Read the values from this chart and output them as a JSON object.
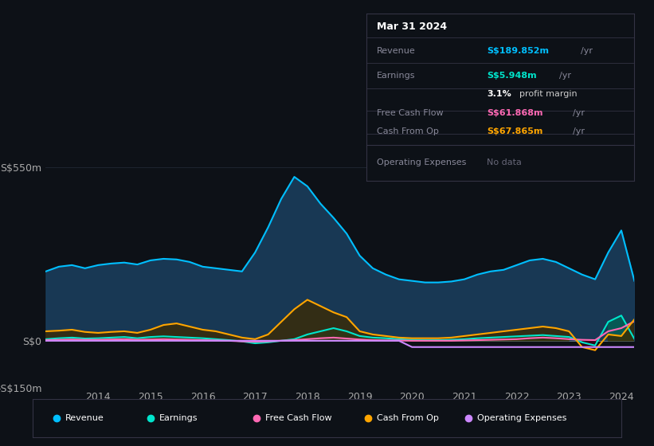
{
  "bg_color": "#0d1117",
  "plot_bg_color": "#0d1117",
  "grid_color": "#2a3040",
  "ylim": [
    -150,
    600
  ],
  "yticks": [
    -150,
    0,
    550
  ],
  "ytick_labels": [
    "-S$150m",
    "S$0",
    "S$550m"
  ],
  "years": [
    2013.0,
    2013.25,
    2013.5,
    2013.75,
    2014.0,
    2014.25,
    2014.5,
    2014.75,
    2015.0,
    2015.25,
    2015.5,
    2015.75,
    2016.0,
    2016.25,
    2016.5,
    2016.75,
    2017.0,
    2017.25,
    2017.5,
    2017.75,
    2018.0,
    2018.25,
    2018.5,
    2018.75,
    2019.0,
    2019.25,
    2019.5,
    2019.75,
    2020.0,
    2020.25,
    2020.5,
    2020.75,
    2021.0,
    2021.25,
    2021.5,
    2021.75,
    2022.0,
    2022.25,
    2022.5,
    2022.75,
    2023.0,
    2023.25,
    2023.5,
    2023.75,
    2024.0,
    2024.25
  ],
  "revenue": [
    220,
    235,
    240,
    230,
    240,
    245,
    248,
    242,
    255,
    260,
    258,
    250,
    235,
    230,
    225,
    220,
    280,
    360,
    450,
    520,
    490,
    435,
    390,
    340,
    270,
    230,
    210,
    195,
    190,
    185,
    185,
    188,
    195,
    210,
    220,
    225,
    240,
    255,
    260,
    250,
    230,
    210,
    195,
    280,
    350,
    190
  ],
  "earnings": [
    5,
    8,
    10,
    7,
    8,
    10,
    12,
    8,
    12,
    14,
    12,
    10,
    8,
    5,
    2,
    -2,
    -8,
    -5,
    0,
    5,
    20,
    30,
    40,
    30,
    15,
    10,
    8,
    5,
    3,
    2,
    2,
    3,
    5,
    8,
    10,
    12,
    14,
    16,
    18,
    15,
    12,
    -5,
    -15,
    60,
    80,
    5.948
  ],
  "free_cash_flow": [
    2,
    3,
    4,
    3,
    3,
    4,
    5,
    3,
    4,
    5,
    4,
    3,
    2,
    1,
    0,
    -2,
    -3,
    -2,
    0,
    2,
    5,
    8,
    10,
    7,
    4,
    2,
    1,
    1,
    0,
    0,
    0,
    0,
    1,
    2,
    3,
    4,
    5,
    8,
    10,
    8,
    5,
    3,
    2,
    30,
    40,
    61.868
  ],
  "cash_from_op": [
    30,
    32,
    35,
    28,
    25,
    28,
    30,
    25,
    35,
    50,
    55,
    45,
    35,
    30,
    20,
    10,
    5,
    20,
    60,
    100,
    130,
    110,
    90,
    75,
    30,
    20,
    15,
    10,
    8,
    8,
    8,
    10,
    15,
    20,
    25,
    30,
    35,
    40,
    45,
    40,
    30,
    -20,
    -30,
    20,
    15,
    67.865
  ],
  "operating_expenses": [
    0,
    0,
    0,
    0,
    0,
    0,
    0,
    0,
    0,
    0,
    0,
    0,
    0,
    0,
    0,
    0,
    0,
    0,
    0,
    0,
    0,
    0,
    0,
    0,
    0,
    0,
    0,
    0,
    -20,
    -20,
    -20,
    -20,
    -20,
    -20,
    -20,
    -20,
    -20,
    -20,
    -20,
    -20,
    -20,
    -20,
    -20,
    -20,
    -20,
    -20
  ],
  "revenue_color": "#00bfff",
  "earnings_color": "#00e5cc",
  "free_cash_flow_color": "#ff69b4",
  "cash_from_op_color": "#ffa500",
  "operating_expenses_color": "#cc88ff",
  "revenue_fill": "#1a4060",
  "earnings_fill": "#006655",
  "cash_from_op_fill_pos": "#4a3800",
  "cash_from_op_fill_neg": "#3a0010",
  "info_box_bg": "#0d1117",
  "info_box_border": "#333344",
  "legend_bg": "#0d1117",
  "legend_border": "#333344"
}
